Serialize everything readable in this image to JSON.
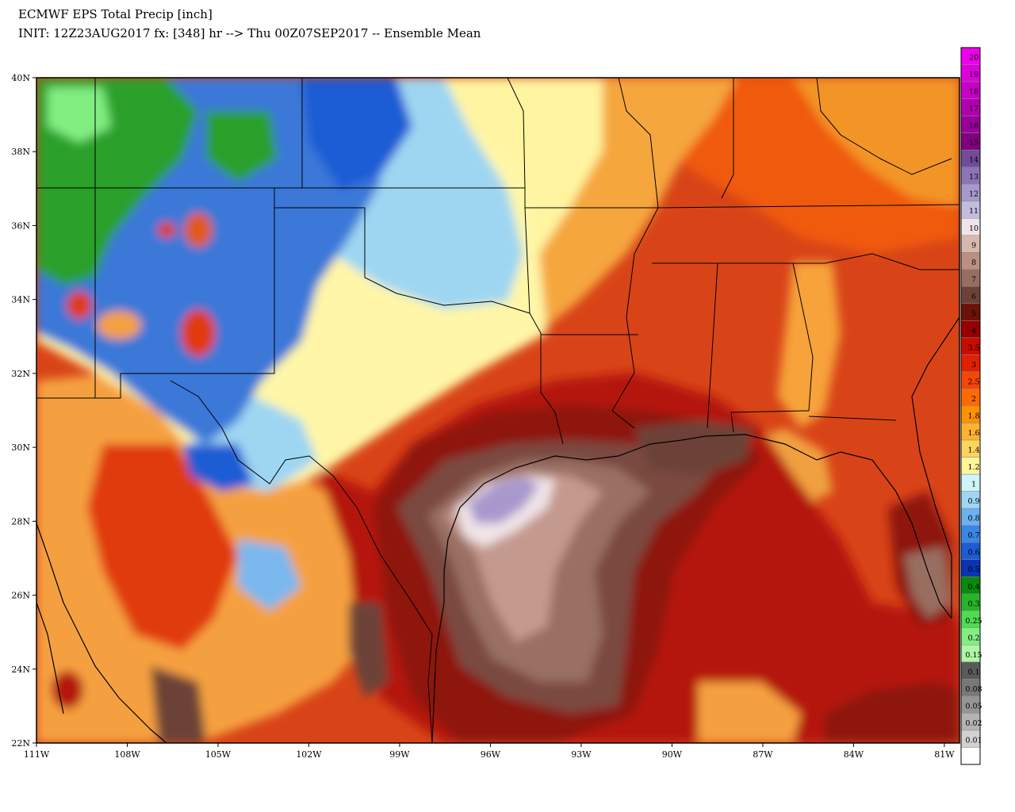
{
  "header": {
    "title": "ECMWF EPS Total Precip [inch]",
    "subtitle": "INIT: 12Z23AUG2017 fx: [348] hr --> Thu 00Z07SEP2017 -- Ensemble Mean"
  },
  "map": {
    "lon_range": [
      -111,
      -80.5
    ],
    "lat_range": [
      22,
      40
    ],
    "lat_labels": [
      {
        "value": 40,
        "label": "40N"
      },
      {
        "value": 38,
        "label": "38N"
      },
      {
        "value": 36,
        "label": "36N"
      },
      {
        "value": 34,
        "label": "34N"
      },
      {
        "value": 32,
        "label": "32N"
      },
      {
        "value": 30,
        "label": "30N"
      },
      {
        "value": 28,
        "label": "28N"
      },
      {
        "value": 26,
        "label": "26N"
      },
      {
        "value": 24,
        "label": "24N"
      },
      {
        "value": 22,
        "label": "22N"
      }
    ],
    "lon_labels": [
      {
        "value": -111,
        "label": "111W"
      },
      {
        "value": -108,
        "label": "108W"
      },
      {
        "value": -105,
        "label": "105W"
      },
      {
        "value": -102,
        "label": "102W"
      },
      {
        "value": -99,
        "label": "99W"
      },
      {
        "value": -96,
        "label": "96W"
      },
      {
        "value": -93,
        "label": "93W"
      },
      {
        "value": -90,
        "label": "90W"
      },
      {
        "value": -87,
        "label": "87W"
      },
      {
        "value": -84,
        "label": "84W"
      },
      {
        "value": -81,
        "label": "81W"
      }
    ],
    "background_color": "#d84418",
    "precip_areas": [
      {
        "region": "colorado-rockies-wet",
        "color": "#2ba02b"
      },
      {
        "region": "mountain-west-blue",
        "color": "#3a78d8"
      },
      {
        "region": "plains-light-blue",
        "color": "#9ed6f2"
      },
      {
        "region": "southern-plains-yellow",
        "color": "#fff8a8"
      },
      {
        "region": "ozarks-orange",
        "color": "#f5a63c"
      },
      {
        "region": "southeast-orange",
        "color": "#f39526"
      },
      {
        "region": "texas-gulf-dark-red",
        "color": "#8e1208"
      },
      {
        "region": "harvey-max-brown",
        "color": "#7a4a40"
      },
      {
        "region": "harvey-max-pink",
        "color": "#c49a8e"
      },
      {
        "region": "harvey-max-lavender",
        "color": "#a898cc"
      }
    ]
  },
  "legend": {
    "levels": [
      {
        "label": "20",
        "color": "#ee00ee"
      },
      {
        "label": "19",
        "color": "#dc00dc"
      },
      {
        "label": "18",
        "color": "#c800c8"
      },
      {
        "label": "17",
        "color": "#b000b0"
      },
      {
        "label": "16",
        "color": "#9a009a"
      },
      {
        "label": "15",
        "color": "#80007e"
      },
      {
        "label": "14",
        "color": "#704c9a"
      },
      {
        "label": "13",
        "color": "#8c74b6"
      },
      {
        "label": "12",
        "color": "#a898cc"
      },
      {
        "label": "11",
        "color": "#c4bcde"
      },
      {
        "label": "10",
        "color": "#f0e4e8"
      },
      {
        "label": "9",
        "color": "#d8b8ae"
      },
      {
        "label": "8",
        "color": "#bb9082"
      },
      {
        "label": "7",
        "color": "#986e60"
      },
      {
        "label": "6",
        "color": "#6c4238"
      },
      {
        "label": "5",
        "color": "#6c1208"
      },
      {
        "label": "4",
        "color": "#960000"
      },
      {
        "label": "3.5",
        "color": "#c80c00"
      },
      {
        "label": "3",
        "color": "#e22000"
      },
      {
        "label": "2.5",
        "color": "#f54608"
      },
      {
        "label": "2",
        "color": "#ff6a00"
      },
      {
        "label": "1.8",
        "color": "#ff9200"
      },
      {
        "label": "1.6",
        "color": "#ffb232"
      },
      {
        "label": "1.4",
        "color": "#ffd45c"
      },
      {
        "label": "1.2",
        "color": "#fff69a"
      },
      {
        "label": "1",
        "color": "#cdf4f6"
      },
      {
        "label": "0.9",
        "color": "#9ed6f6"
      },
      {
        "label": "0.8",
        "color": "#6cb0f0"
      },
      {
        "label": "0.7",
        "color": "#3a86e4"
      },
      {
        "label": "0.6",
        "color": "#1c5cd4"
      },
      {
        "label": "0.5",
        "color": "#0a34b4"
      },
      {
        "label": "0.4",
        "color": "#0a8a0a"
      },
      {
        "label": "0.3",
        "color": "#28b428"
      },
      {
        "label": "0.25",
        "color": "#50dc50"
      },
      {
        "label": "0.2",
        "color": "#82ee82"
      },
      {
        "label": "0.15",
        "color": "#aef6a8"
      },
      {
        "label": "0.1",
        "color": "#5a5a5a"
      },
      {
        "label": "0.08",
        "color": "#787878"
      },
      {
        "label": "0.05",
        "color": "#969696"
      },
      {
        "label": "0.02",
        "color": "#b4b4b4"
      },
      {
        "label": "0.01",
        "color": "#d2d2d2"
      },
      {
        "label": "",
        "color": "#ffffff"
      }
    ]
  }
}
